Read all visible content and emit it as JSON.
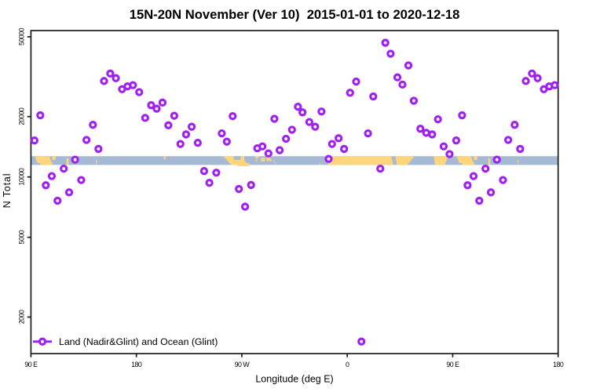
{
  "chart_data": {
    "type": "scatter",
    "title": "15N-20N November (Ver 10)  2015-01-01 to 2020-12-18",
    "xlabel": "Longitude (deg E)",
    "ylabel": "N Total",
    "x_axis": {
      "range": [
        90,
        540
      ],
      "ticks": [
        {
          "lon": 90,
          "label": "90 E"
        },
        {
          "lon": 180,
          "label": "180"
        },
        {
          "lon": 270,
          "label": "90 W"
        },
        {
          "lon": 360,
          "label": "0"
        },
        {
          "lon": 450,
          "label": "90 E"
        },
        {
          "lon": 540,
          "label": "180"
        }
      ],
      "wrap_repeat_below_lon": 180
    },
    "y_axis": {
      "scale": "log10",
      "range": [
        1320,
        53500
      ],
      "ticks": [
        {
          "value": 2000,
          "label": "2000"
        },
        {
          "value": 5000,
          "label": "5000"
        },
        {
          "value": 10000,
          "label": "10000"
        },
        {
          "value": 20000,
          "label": "20000"
        },
        {
          "value": 50000,
          "label": "50000"
        }
      ]
    },
    "legend": {
      "label": "Land (Nadir&Glint) and Ocean (Glint)"
    },
    "series": [
      {
        "name": "Land (Nadir&Glint) and Ocean (Glint)",
        "marker": "open-circle",
        "color": "#a020f0",
        "points": [
          {
            "lon": 93.0,
            "n": 15200
          },
          {
            "lon": 98.0,
            "n": 20300
          },
          {
            "lon": 102.7,
            "n": 9090
          },
          {
            "lon": 107.8,
            "n": 10100
          },
          {
            "lon": 112.7,
            "n": 7610
          },
          {
            "lon": 118.0,
            "n": 11000
          },
          {
            "lon": 122.6,
            "n": 8380
          },
          {
            "lon": 127.7,
            "n": 12200
          },
          {
            "lon": 132.9,
            "n": 9650
          },
          {
            "lon": 137.4,
            "n": 15300
          },
          {
            "lon": 142.9,
            "n": 18200
          },
          {
            "lon": 147.6,
            "n": 13800
          },
          {
            "lon": 152.4,
            "n": 30100
          },
          {
            "lon": 157.7,
            "n": 32800
          },
          {
            "lon": 162.5,
            "n": 31100
          },
          {
            "lon": 167.8,
            "n": 27400
          },
          {
            "lon": 172.4,
            "n": 28300
          },
          {
            "lon": 177.1,
            "n": 28700
          },
          {
            "lon": 182.4,
            "n": 26500
          },
          {
            "lon": 187.5,
            "n": 19700
          },
          {
            "lon": 192.6,
            "n": 22800
          },
          {
            "lon": 197.3,
            "n": 21900
          },
          {
            "lon": 202.3,
            "n": 23500
          },
          {
            "lon": 207.3,
            "n": 18100
          },
          {
            "lon": 212.3,
            "n": 20200
          },
          {
            "lon": 217.6,
            "n": 14600
          },
          {
            "lon": 222.4,
            "n": 16300
          },
          {
            "lon": 227.2,
            "n": 17800
          },
          {
            "lon": 232.4,
            "n": 14800
          },
          {
            "lon": 237.8,
            "n": 10700
          },
          {
            "lon": 242.3,
            "n": 9350
          },
          {
            "lon": 248.2,
            "n": 10500
          },
          {
            "lon": 252.9,
            "n": 16500
          },
          {
            "lon": 257.2,
            "n": 15000
          },
          {
            "lon": 262.2,
            "n": 20100
          },
          {
            "lon": 267.5,
            "n": 8710
          },
          {
            "lon": 272.8,
            "n": 7110
          },
          {
            "lon": 277.9,
            "n": 9120
          },
          {
            "lon": 283.2,
            "n": 13900
          },
          {
            "lon": 287.6,
            "n": 14200
          },
          {
            "lon": 292.7,
            "n": 13100
          },
          {
            "lon": 297.8,
            "n": 19500
          },
          {
            "lon": 302.3,
            "n": 13600
          },
          {
            "lon": 307.7,
            "n": 15500
          },
          {
            "lon": 312.8,
            "n": 17200
          },
          {
            "lon": 317.9,
            "n": 22400
          },
          {
            "lon": 321.8,
            "n": 21000
          },
          {
            "lon": 327.6,
            "n": 18800
          },
          {
            "lon": 332.6,
            "n": 17800
          },
          {
            "lon": 338.0,
            "n": 21200
          },
          {
            "lon": 344.1,
            "n": 12300
          },
          {
            "lon": 347.0,
            "n": 14600
          },
          {
            "lon": 352.6,
            "n": 15600
          },
          {
            "lon": 357.3,
            "n": 13800
          },
          {
            "lon": 362.4,
            "n": 26300
          },
          {
            "lon": 367.6,
            "n": 29900
          },
          {
            "lon": 372.1,
            "n": 1510
          },
          {
            "lon": 377.7,
            "n": 16500
          },
          {
            "lon": 382.2,
            "n": 25200
          },
          {
            "lon": 388.2,
            "n": 11000
          },
          {
            "lon": 392.5,
            "n": 46700
          },
          {
            "lon": 397.0,
            "n": 41200
          },
          {
            "lon": 402.8,
            "n": 31400
          },
          {
            "lon": 407.1,
            "n": 28900
          },
          {
            "lon": 412.2,
            "n": 36000
          },
          {
            "lon": 416.8,
            "n": 24000
          },
          {
            "lon": 422.4,
            "n": 17400
          },
          {
            "lon": 427.4,
            "n": 16600
          },
          {
            "lon": 432.5,
            "n": 16300
          },
          {
            "lon": 437.4,
            "n": 19400
          },
          {
            "lon": 442.3,
            "n": 14200
          },
          {
            "lon": 447.3,
            "n": 13000
          }
        ]
      }
    ],
    "map_band": {
      "description": "15N-20N latitude strip of world map drawn across the plot",
      "ocean_color": "#a6b9d4",
      "land_color": "#fcd57c",
      "value_top": 12690,
      "value_bottom": 11480,
      "patches": [
        {
          "kind": "land",
          "lon0": 93.8,
          "lon1": 106.0,
          "f0": 0.0,
          "f1": 0.25
        },
        {
          "kind": "land",
          "lon0": 94.5,
          "lon1": 106.6,
          "f0": 0.25,
          "f1": 0.5
        },
        {
          "kind": "land",
          "lon0": 95.3,
          "lon1": 107.4,
          "f0": 0.5,
          "f1": 0.75
        },
        {
          "kind": "land",
          "lon0": 98.0,
          "lon1": 108.4,
          "f0": 0.75,
          "f1": 1.0
        },
        {
          "kind": "land",
          "lon0": 108.2,
          "lon1": 111.0,
          "f0": 0.0,
          "f1": 0.4
        },
        {
          "kind": "land",
          "lon0": 120.4,
          "lon1": 122.1,
          "f0": 0.25,
          "f1": 1.0
        },
        {
          "kind": "land",
          "lon0": 145.4,
          "lon1": 146.3,
          "f0": 0.45,
          "f1": 0.8
        },
        {
          "kind": "land",
          "lon0": 203.4,
          "lon1": 205.0,
          "f0": 0.0,
          "f1": 0.3
        },
        {
          "kind": "land",
          "lon0": 255.2,
          "lon1": 272.1,
          "f0": 0.0,
          "f1": 0.25
        },
        {
          "kind": "land",
          "lon0": 257.0,
          "lon1": 272.1,
          "f0": 0.25,
          "f1": 0.5
        },
        {
          "kind": "land",
          "lon0": 258.8,
          "lon1": 273.0,
          "f0": 0.5,
          "f1": 0.75
        },
        {
          "kind": "land",
          "lon0": 260.5,
          "lon1": 274.5,
          "f0": 0.75,
          "f1": 1.0
        },
        {
          "kind": "ocean",
          "lon0": 263.2,
          "lon1": 268.9,
          "f0": 0.0,
          "f1": 0.38
        },
        {
          "kind": "land",
          "lon0": 266.6,
          "lon1": 276.4,
          "f0": 0.8,
          "f1": 1.15
        },
        {
          "kind": "land",
          "lon0": 281.6,
          "lon1": 284.3,
          "f0": 0.0,
          "f1": 0.18
        },
        {
          "kind": "land",
          "lon0": 281.9,
          "lon1": 283.1,
          "f0": 0.35,
          "f1": 0.52
        },
        {
          "kind": "land",
          "lon0": 286.4,
          "lon1": 289.9,
          "f0": 0.2,
          "f1": 0.55
        },
        {
          "kind": "land",
          "lon0": 291.1,
          "lon1": 294.3,
          "f0": 0.05,
          "f1": 0.5
        },
        {
          "kind": "land",
          "lon0": 294.3,
          "lon1": 295.4,
          "f0": 0.35,
          "f1": 0.55
        },
        {
          "kind": "land",
          "lon0": 297.1,
          "lon1": 297.7,
          "f0": 0.5,
          "f1": 0.65
        },
        {
          "kind": "land",
          "lon0": 298.5,
          "lon1": 299.1,
          "f0": 0.7,
          "f1": 0.85
        },
        {
          "kind": "land",
          "lon0": 336.4,
          "lon1": 337.1,
          "f0": 0.8,
          "f1": 0.95
        },
        {
          "kind": "land",
          "lon0": 342.9,
          "lon1": 397.8,
          "f0": 0.0,
          "f1": 0.25
        },
        {
          "kind": "land",
          "lon0": 343.1,
          "lon1": 398.2,
          "f0": 0.25,
          "f1": 0.5
        },
        {
          "kind": "land",
          "lon0": 343.3,
          "lon1": 398.6,
          "f0": 0.5,
          "f1": 0.75
        },
        {
          "kind": "land",
          "lon0": 343.5,
          "lon1": 399.0,
          "f0": 0.75,
          "f1": 1.0
        },
        {
          "kind": "land",
          "lon0": 401.2,
          "lon1": 416.4,
          "f0": 0.0,
          "f1": 0.25
        },
        {
          "kind": "land",
          "lon0": 401.5,
          "lon1": 414.8,
          "f0": 0.25,
          "f1": 0.5
        },
        {
          "kind": "land",
          "lon0": 401.9,
          "lon1": 413.3,
          "f0": 0.5,
          "f1": 0.75
        },
        {
          "kind": "land",
          "lon0": 402.2,
          "lon1": 411.7,
          "f0": 0.75,
          "f1": 1.0
        },
        {
          "kind": "land",
          "lon0": 434.0,
          "lon1": 445.6,
          "f0": 0.0,
          "f1": 0.25
        },
        {
          "kind": "land",
          "lon0": 434.3,
          "lon1": 444.9,
          "f0": 0.25,
          "f1": 0.5
        },
        {
          "kind": "land",
          "lon0": 434.6,
          "lon1": 444.1,
          "f0": 0.5,
          "f1": 0.75
        },
        {
          "kind": "land",
          "lon0": 434.9,
          "lon1": 443.4,
          "f0": 0.75,
          "f1": 1.0
        }
      ]
    },
    "colors": {
      "point": "#a020f0",
      "axis": "#1c1c1c",
      "text": "#000000",
      "background": "#ffffff"
    }
  }
}
